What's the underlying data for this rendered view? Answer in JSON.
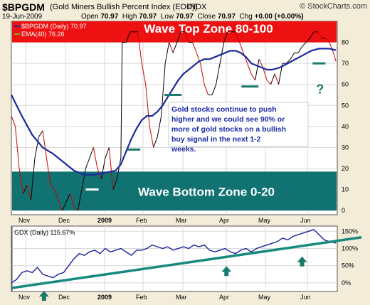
{
  "header": {
    "symbol": "$BPGDM",
    "name": "(Gold Miners Bullish Percent Index (EOD))",
    "exchange": "INDX",
    "brand": "© StockCharts.com",
    "date": "19-Jun-2009",
    "open_label": "Open",
    "open": "70.97",
    "high_label": "High",
    "high": "70.97",
    "low_label": "Low",
    "low": "70.97",
    "close_label": "Close",
    "close": "70.97",
    "chg_label": "Chg",
    "chg": "+0.00 (+0.00%)"
  },
  "colors": {
    "price_up": "#000000",
    "price_down": "#cc0000",
    "ema": "#1a2a9c",
    "top_zone": "#ee1111",
    "bottom_zone": "#117272",
    "trendline": "#178a7e",
    "arrow": "#1a7a6e",
    "gdx": "#1a1f9c"
  },
  "chart_data": [
    {
      "type": "line",
      "legend": [
        "$BPGDM (Daily) 70.97",
        "EMA(40) 76.26"
      ],
      "x_tick_labels": [
        "Nov",
        "Dec",
        "2009",
        "Feb",
        "Mar",
        "Apr",
        "May",
        "Jun"
      ],
      "y_tick_labels": [
        "0",
        "10",
        "20",
        "30",
        "40",
        "50",
        "60",
        "70",
        "80"
      ],
      "ylim": [
        -2,
        90
      ],
      "grid": true,
      "zones": [
        {
          "label": "Wave Top Zone 80-100",
          "from": 80,
          "to": 100
        },
        {
          "label": "Wave Bottom Zone 0-20",
          "from": 0,
          "to": 18.5
        }
      ],
      "series": [
        {
          "name": "$BPGDM (Daily) 70.97",
          "points": [
            [
              0,
              45
            ],
            [
              3,
              40
            ],
            [
              6,
              20
            ],
            [
              9,
              8
            ],
            [
              12,
              12
            ],
            [
              15,
              5
            ],
            [
              18,
              25
            ],
            [
              21,
              35
            ],
            [
              24,
              38
            ],
            [
              27,
              25
            ],
            [
              30,
              12
            ],
            [
              33,
              10
            ],
            [
              36,
              5
            ],
            [
              39,
              0
            ],
            [
              42,
              4
            ],
            [
              45,
              8
            ],
            [
              48,
              2
            ],
            [
              51,
              0
            ],
            [
              54,
              10
            ],
            [
              57,
              20
            ],
            [
              60,
              25
            ],
            [
              63,
              30
            ],
            [
              66,
              20
            ],
            [
              69,
              15
            ],
            [
              72,
              25
            ],
            [
              75,
              30
            ],
            [
              78,
              10
            ],
            [
              81,
              15
            ],
            [
              84,
              25
            ],
            [
              85,
              80
            ],
            [
              88,
              80
            ],
            [
              91,
              85
            ],
            [
              94,
              85
            ],
            [
              97,
              85
            ],
            [
              100,
              70
            ],
            [
              103,
              60
            ],
            [
              106,
              40
            ],
            [
              109,
              30
            ],
            [
              112,
              35
            ],
            [
              115,
              45
            ],
            [
              118,
              70
            ],
            [
              121,
              80
            ],
            [
              124,
              75
            ],
            [
              127,
              80
            ],
            [
              130,
              85
            ],
            [
              133,
              85
            ],
            [
              136,
              80
            ],
            [
              139,
              80
            ],
            [
              142,
              75
            ],
            [
              145,
              70
            ],
            [
              148,
              60
            ],
            [
              151,
              55
            ],
            [
              154,
              55
            ],
            [
              157,
              60
            ],
            [
              160,
              70
            ],
            [
              163,
              80
            ],
            [
              166,
              85
            ],
            [
              169,
              85
            ],
            [
              172,
              85
            ],
            [
              175,
              80
            ],
            [
              178,
              75
            ],
            [
              181,
              70
            ],
            [
              184,
              65
            ],
            [
              187,
              62
            ],
            [
              190,
              72
            ],
            [
              193,
              68
            ],
            [
              196,
              62
            ],
            [
              199,
              60
            ],
            [
              202,
              65
            ],
            [
              205,
              60
            ],
            [
              208,
              70
            ],
            [
              211,
              70
            ],
            [
              214,
              72
            ],
            [
              217,
              75
            ],
            [
              220,
              75
            ],
            [
              223,
              78
            ],
            [
              226,
              80
            ],
            [
              229,
              82
            ],
            [
              232,
              85
            ],
            [
              235,
              85
            ],
            [
              238,
              82
            ],
            [
              241,
              82
            ],
            [
              244,
              80
            ],
            [
              247,
              75
            ],
            [
              249,
              70.97
            ]
          ]
        },
        {
          "name": "EMA(40) 76.26",
          "points": [
            [
              0,
              55
            ],
            [
              8,
              45
            ],
            [
              16,
              36
            ],
            [
              24,
              30
            ],
            [
              32,
              27
            ],
            [
              40,
              23
            ],
            [
              48,
              19
            ],
            [
              56,
              17
            ],
            [
              64,
              17
            ],
            [
              72,
              18
            ],
            [
              80,
              19
            ],
            [
              84,
              22
            ],
            [
              88,
              28
            ],
            [
              92,
              34
            ],
            [
              96,
              39
            ],
            [
              100,
              43
            ],
            [
              104,
              45
            ],
            [
              108,
              45
            ],
            [
              112,
              47
            ],
            [
              116,
              50
            ],
            [
              120,
              54
            ],
            [
              124,
              58
            ],
            [
              128,
              62
            ],
            [
              132,
              65
            ],
            [
              136,
              67
            ],
            [
              140,
              69
            ],
            [
              144,
              71
            ],
            [
              148,
              72
            ],
            [
              152,
              72
            ],
            [
              156,
              73
            ],
            [
              160,
              74
            ],
            [
              164,
              75
            ],
            [
              168,
              76
            ],
            [
              172,
              76
            ],
            [
              176,
              75
            ],
            [
              180,
              73
            ],
            [
              184,
              70
            ],
            [
              188,
              69
            ],
            [
              192,
              68
            ],
            [
              196,
              67
            ],
            [
              200,
              67
            ],
            [
              206,
              68
            ],
            [
              212,
              70
            ],
            [
              218,
              72
            ],
            [
              224,
              74
            ],
            [
              230,
              76
            ],
            [
              236,
              77
            ],
            [
              240,
              77
            ],
            [
              244,
              77
            ],
            [
              249,
              76.26
            ]
          ]
        }
      ],
      "annotations": [
        {
          "text": "Gold stocks continue to push higher and we could see 90% or more of gold stocks on a bullish buy signal in the next 1-2 weeks."
        },
        {
          "text": "?"
        }
      ],
      "markers": [
        {
          "x": 62,
          "y": 10
        },
        {
          "x": 94,
          "y": 29
        },
        {
          "x": 124,
          "y": 55
        },
        {
          "x": 183,
          "y": 59
        },
        {
          "x": 236,
          "y": 70
        }
      ]
    },
    {
      "type": "line",
      "legend": [
        "GDX (Daily) 115.67%"
      ],
      "x_tick_labels": [
        "Nov",
        "Dec",
        "2009",
        "Feb",
        "Mar",
        "Apr",
        "May",
        "Jun"
      ],
      "y_tick_labels": [
        "0%",
        "50%",
        "100%",
        "150%"
      ],
      "ylim": [
        -25,
        165
      ],
      "grid": true,
      "series": [
        {
          "name": "GDX (Daily) 115.67%",
          "points": [
            [
              0,
              0
            ],
            [
              4,
              10
            ],
            [
              8,
              30
            ],
            [
              12,
              35
            ],
            [
              16,
              30
            ],
            [
              20,
              45
            ],
            [
              24,
              25
            ],
            [
              28,
              20
            ],
            [
              32,
              15
            ],
            [
              36,
              25
            ],
            [
              40,
              30
            ],
            [
              44,
              50
            ],
            [
              48,
              70
            ],
            [
              52,
              85
            ],
            [
              56,
              80
            ],
            [
              60,
              90
            ],
            [
              64,
              95
            ],
            [
              68,
              85
            ],
            [
              72,
              100
            ],
            [
              76,
              90
            ],
            [
              80,
              95
            ],
            [
              84,
              100
            ],
            [
              88,
              90
            ],
            [
              92,
              80
            ],
            [
              96,
              95
            ],
            [
              100,
              95
            ],
            [
              104,
              100
            ],
            [
              108,
              110
            ],
            [
              112,
              105
            ],
            [
              116,
              100
            ],
            [
              120,
              105
            ],
            [
              124,
              95
            ],
            [
              128,
              100
            ],
            [
              132,
              105
            ],
            [
              136,
              100
            ],
            [
              140,
              110
            ],
            [
              144,
              105
            ],
            [
              148,
              110
            ],
            [
              152,
              95
            ],
            [
              156,
              90
            ],
            [
              160,
              95
            ],
            [
              164,
              100
            ],
            [
              168,
              90
            ],
            [
              172,
              85
            ],
            [
              176,
              95
            ],
            [
              180,
              100
            ],
            [
              184,
              90
            ],
            [
              188,
              100
            ],
            [
              192,
              105
            ],
            [
              196,
              110
            ],
            [
              200,
              115
            ],
            [
              204,
              120
            ],
            [
              208,
              130
            ],
            [
              212,
              125
            ],
            [
              216,
              135
            ],
            [
              220,
              140
            ],
            [
              224,
              145
            ],
            [
              228,
              150
            ],
            [
              232,
              155
            ],
            [
              236,
              140
            ],
            [
              240,
              125
            ],
            [
              244,
              120
            ],
            [
              249,
              115.67
            ]
          ]
        },
        {
          "name": "",
          "points": [
            [
              0,
              -15
            ],
            [
              250,
              120
            ]
          ]
        }
      ],
      "markers": [
        {
          "x": 25,
          "y": -15
        },
        {
          "x": 165,
          "y": 57
        },
        {
          "x": 223,
          "y": 85
        }
      ]
    }
  ]
}
